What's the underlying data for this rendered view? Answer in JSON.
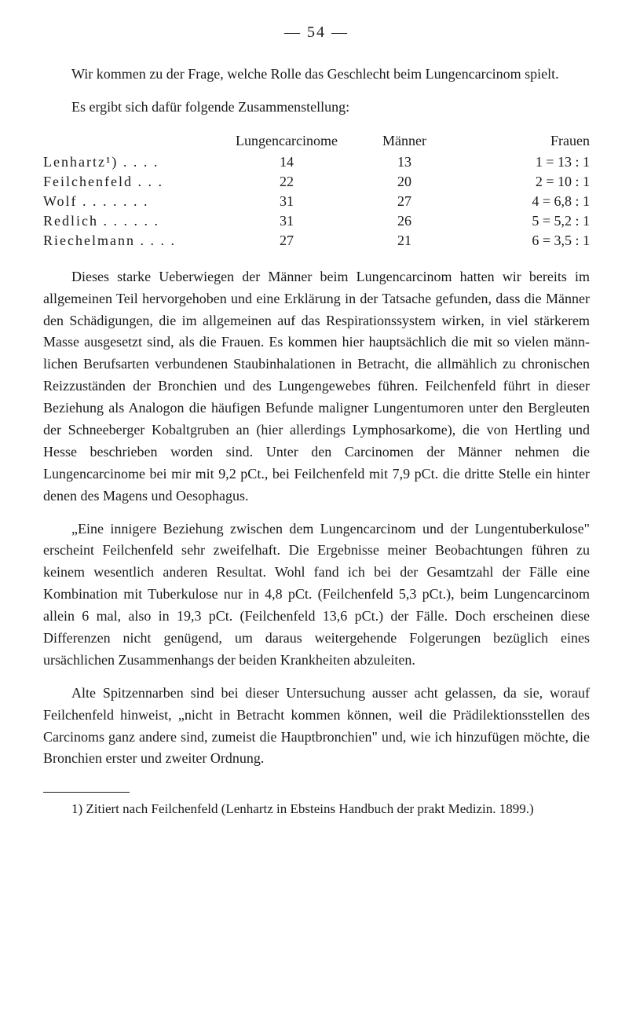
{
  "page_number": "— 54 —",
  "intro_para": "Wir kommen zu der Frage, welche Rolle das Geschlecht beim Lungen­carcinom spielt.",
  "intro_para2": "Es ergibt sich dafür folgende Zusammenstellung:",
  "table": {
    "headers": {
      "lc": "Lungencarcinome",
      "m": "Männer",
      "f": "Frauen"
    },
    "rows": [
      {
        "name": "Lenhartz¹) . . . .",
        "lc": "14",
        "m": "13",
        "f": "1 = 13 : 1"
      },
      {
        "name": "Feilchenfeld . . .",
        "lc": "22",
        "m": "20",
        "f": "2 = 10 : 1"
      },
      {
        "name": "Wolf . . . . . . .",
        "lc": "31",
        "m": "27",
        "f": "4 = 6,8 : 1"
      },
      {
        "name": "Redlich . . . . . .",
        "lc": "31",
        "m": "26",
        "f": "5 = 5,2 : 1"
      },
      {
        "name": "Riechelmann . . . .",
        "lc": "27",
        "m": "21",
        "f": "6 = 3,5 : 1"
      }
    ]
  },
  "body1": "Dieses starke Ueberwiegen der Männer beim Lungencarcinom hatten wir bereits im allgemeinen Teil hervorgehoben und eine Erklärung in der Tatsache gefunden, dass die Männer den Schädigungen, die im allgemeinen auf das Respirationssystem wirken, in viel stärkerem Masse ausgesetzt sind, als die Frauen. Es kommen hier hauptsächlich die mit so vielen männ­lichen Berufsarten verbundenen Staubinhalationen in Betracht, die all­mählich zu chronischen Reizzuständen der Bronchien und des Lungen­gewebes führen. Feilchenfeld führt in dieser Beziehung als Analogon die häufigen Befunde maligner Lungentumoren unter den Bergleuten der Schneeberger Kobaltgruben an (hier allerdings Lymphosarkome), die von Hertling und Hesse beschrieben worden sind. Unter den Carcinomen der Männer nehmen die Lungencarcinome bei mir mit 9,2 pCt., bei Feilchenfeld mit 7,9 pCt. die dritte Stelle ein hinter denen des Magens und Oesophagus.",
  "body2": "„Eine innigere Beziehung zwischen dem Lungencarcinom und der Lungentuberkulose\" erscheint Feilchenfeld sehr zweifelhaft. Die Ergeb­nisse meiner Beobachtungen führen zu keinem wesentlich anderen Resultat. Wohl fand ich bei der Gesamtzahl der Fälle eine Kombination mit Tuber­kulose nur in 4,8 pCt. (Feilchenfeld 5,3 pCt.), beim Lungencarcinom allein 6 mal, also in 19,3 pCt. (Feilchenfeld 13,6 pCt.) der Fälle. Doch erscheinen diese Differenzen nicht genügend, um daraus weitergehende Folgerungen bezüglich eines ursächlichen Zusammenhangs der beiden Krankheiten abzuleiten.",
  "body3": "Alte Spitzennarben sind bei dieser Untersuchung ausser acht gelassen, da sie, worauf Feilchenfeld hinweist, „nicht in Betracht kommen können, weil die Prädilektionsstellen des Carcinoms ganz andere sind, zumeist die Hauptbronchien\" und, wie ich hinzufügen möchte, die Bronchien erster und zweiter Ordnung.",
  "footnote": "1) Zitiert nach Feilchenfeld (Lenhartz in Ebsteins Handbuch der prakt Medizin. 1899.)"
}
